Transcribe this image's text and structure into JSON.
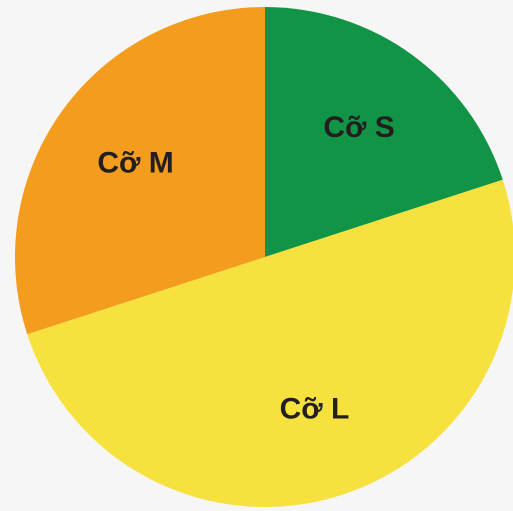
{
  "chart_data": {
    "type": "pie",
    "slices": [
      {
        "label": "Cỡ S",
        "value": 20,
        "color": "#129447"
      },
      {
        "label": "Cỡ L",
        "value": 50,
        "color": "#f7e13f"
      },
      {
        "label": "Cỡ M",
        "value": 30,
        "color": "#f39c1d"
      }
    ],
    "start_angle_deg": 0,
    "direction": "clockwise",
    "legend": "none"
  }
}
